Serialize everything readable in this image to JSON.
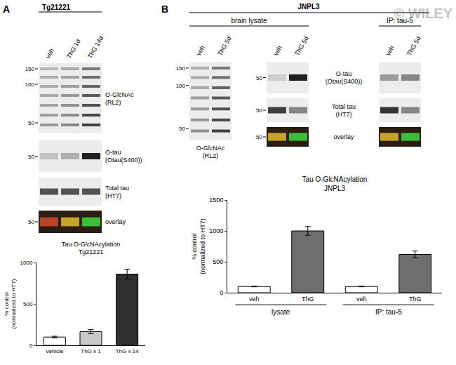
{
  "chart_data": [
    {
      "type": "bar",
      "title": "Tau O-GlcNAcylation\nTg21221",
      "y_label": "% control\n(normalized to HT7)",
      "categories": [
        "vehicle",
        "ThG x 1",
        "ThG x 14"
      ],
      "values": [
        100,
        165,
        860
      ],
      "errors": [
        10,
        25,
        60
      ],
      "colors": [
        "#ffffff",
        "#c8c8c8",
        "#303030"
      ],
      "ylim": [
        0,
        1000
      ],
      "yticks": [
        0,
        500,
        1000
      ],
      "grid": false
    },
    {
      "type": "bar",
      "title": "Tau O-GlcNAcylation\nJNPL3",
      "y_label": "% control\n(normalized to HT7)",
      "categories": [
        "veh",
        "ThG",
        "veh",
        "ThG"
      ],
      "values": [
        100,
        1000,
        100,
        620
      ],
      "errors": [
        5,
        70,
        5,
        55
      ],
      "colors": [
        "#ffffff",
        "#6e6e6e",
        "#ffffff",
        "#6e6e6e"
      ],
      "group_labels": [
        "lysate",
        "IP: tau-5"
      ],
      "groups": [
        0,
        0,
        1,
        1
      ],
      "ylim": [
        0,
        1500
      ],
      "yticks": [
        0,
        500,
        1000,
        1500
      ],
      "grid": false
    }
  ],
  "figure": {
    "watermark": "© WILEY",
    "panel_a": {
      "letter": "A",
      "model": "Tg21221",
      "lanes": [
        "veh",
        "ThG 1d",
        "ThG 14d"
      ],
      "blots": [
        {
          "label": [
            "O-GlcNAc",
            "(RL2)"
          ],
          "markers": [
            150,
            100,
            50
          ]
        },
        {
          "label": [
            "O-tau",
            "(Otau(S400))"
          ],
          "markers": [
            50
          ]
        },
        {
          "label": [
            "Total tau",
            "(HT7)"
          ],
          "markers": []
        },
        {
          "label": [
            "overlay"
          ],
          "markers": [
            50
          ]
        }
      ]
    },
    "panel_b": {
      "letter": "B",
      "model": "JNPL3",
      "sections": [
        "brain lysate",
        "IP: tau-5"
      ],
      "lanes": [
        "veh",
        "ThG 5d"
      ],
      "rl2_blot": {
        "label": [
          "O-GlcNAc",
          "(RL2)"
        ],
        "markers": [
          150,
          100,
          50
        ]
      },
      "blots": [
        {
          "label": [
            "O-tau",
            "(Otau(S400))"
          ],
          "markers": [
            50
          ]
        },
        {
          "label": [
            "Total tau",
            "(HT7)"
          ],
          "markers": [
            50
          ]
        },
        {
          "label": [
            "overlay"
          ],
          "markers": [
            50
          ]
        }
      ]
    }
  }
}
